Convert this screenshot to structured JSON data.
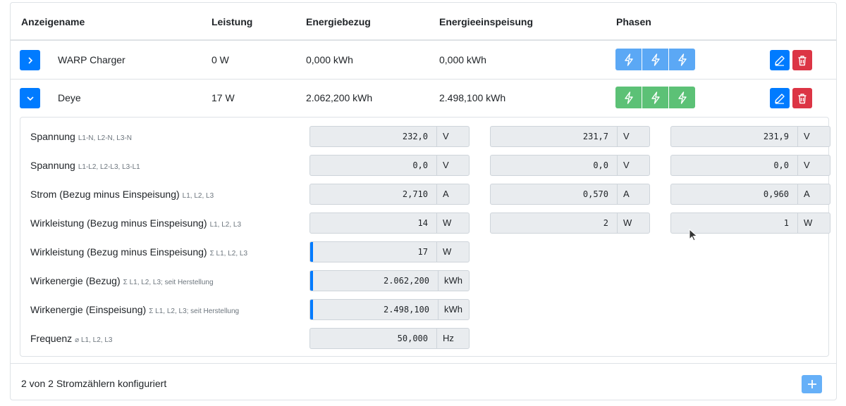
{
  "header": {
    "col_name": "Anzeigename",
    "col_power": "Leistung",
    "col_import": "Energiebezug",
    "col_export": "Energieeinspeisung",
    "col_phases": "Phasen"
  },
  "meters": [
    {
      "name": "WARP Charger",
      "power": "0 W",
      "import": "0,000 kWh",
      "export": "0,000 kWh",
      "phase_color": "#5ba8f5",
      "expanded": false,
      "expand_icon": "chevron-right-icon"
    },
    {
      "name": "Deye",
      "power": "17 W",
      "import": "2.062,200 kWh",
      "export": "2.498,100 kWh",
      "phase_color": "#5cc176",
      "expanded": true,
      "expand_icon": "chevron-down-icon"
    }
  ],
  "details": [
    {
      "label": "Spannung",
      "sub": "L1-N, L2-N, L3-N",
      "values": [
        "232,0",
        "231,7",
        "231,9"
      ],
      "unit": "V",
      "highlight": false
    },
    {
      "label": "Spannung",
      "sub": "L1-L2, L2-L3, L3-L1",
      "values": [
        "0,0",
        "0,0",
        "0,0"
      ],
      "unit": "V",
      "highlight": false
    },
    {
      "label": "Strom (Bezug minus Einspeisung)",
      "sub": "L1, L2, L3",
      "values": [
        "2,710",
        "0,570",
        "0,960"
      ],
      "unit": "A",
      "highlight": false
    },
    {
      "label": "Wirkleistung (Bezug minus Einspeisung)",
      "sub": "L1, L2, L3",
      "values": [
        "14",
        "2",
        "1"
      ],
      "unit": "W",
      "highlight": false
    },
    {
      "label": "Wirkleistung (Bezug minus Einspeisung)",
      "sub": "Σ L1, L2, L3",
      "values": [
        "17"
      ],
      "unit": "W",
      "highlight": true
    },
    {
      "label": "Wirkenergie (Bezug)",
      "sub": "Σ L1, L2, L3; seit Herstellung",
      "values": [
        "2.062,200"
      ],
      "unit": "kWh",
      "highlight": true
    },
    {
      "label": "Wirkenergie (Einspeisung)",
      "sub": "Σ L1, L2, L3; seit Herstellung",
      "values": [
        "2.498,100"
      ],
      "unit": "kWh",
      "highlight": true
    },
    {
      "label": "Frequenz",
      "sub": "⌀ L1, L2, L3",
      "values": [
        "50,000"
      ],
      "unit": "Hz",
      "highlight": false
    }
  ],
  "footer": {
    "status": "2 von 2 Stromzählern konfiguriert"
  },
  "colors": {
    "primary": "#007bff",
    "danger": "#dc3545",
    "phase_blue": "#5ba8f5",
    "phase_green": "#5cc176"
  }
}
